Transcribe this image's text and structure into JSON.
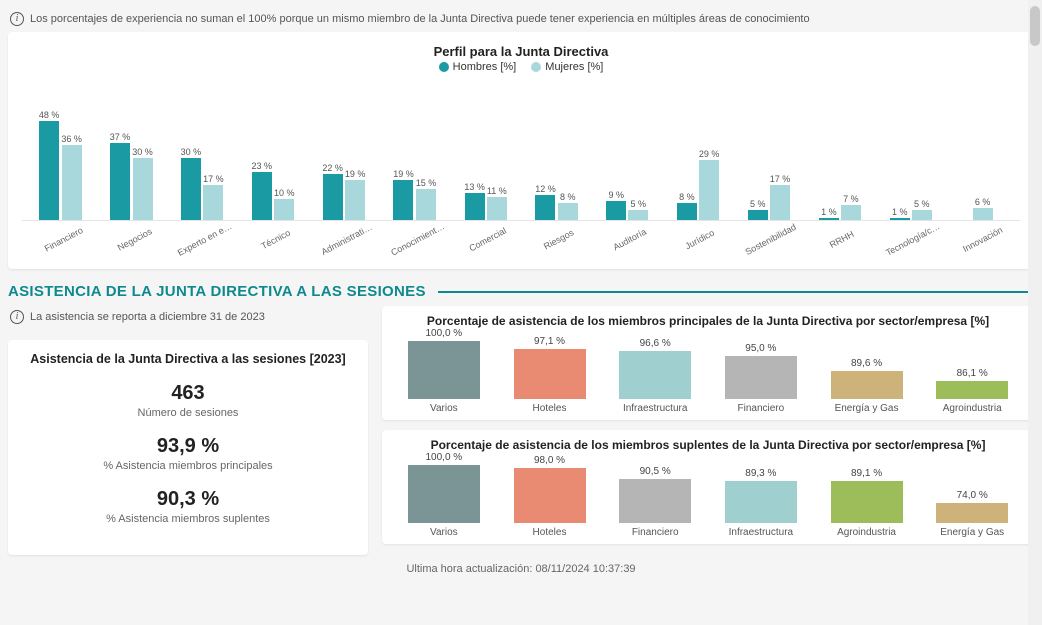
{
  "top_note": "Los porcentajes de experiencia no suman el 100% porque un mismo miembro de la Junta Directiva puede tener experiencia en múltiples áreas de conocimiento",
  "chart1": {
    "title": "Perfil para la Junta Directiva",
    "type": "grouped-bar",
    "ylim_max": 48,
    "legend": [
      {
        "label": "Hombres [%]",
        "color": "#1a9ba3"
      },
      {
        "label": "Mujeres [%]",
        "color": "#a9d8dc"
      }
    ],
    "categories": [
      "Financiero",
      "Negocios",
      "Experto en e…",
      "Técnico",
      "Administrati…",
      "Conocimient…",
      "Comercial",
      "Riesgos",
      "Auditoría",
      "Jurídico",
      "Sostenibilidad",
      "RRHH",
      "Tecnología/c…",
      "Innovación"
    ],
    "series": {
      "hombres": [
        48,
        37,
        30,
        23,
        22,
        19,
        13,
        12,
        9,
        8,
        5,
        1,
        1,
        null
      ],
      "mujeres": [
        36,
        30,
        17,
        10,
        19,
        15,
        11,
        8,
        5,
        29,
        17,
        7,
        5,
        6
      ]
    },
    "bar_colors": {
      "hombres": "#1a9ba3",
      "mujeres": "#a9d8dc"
    },
    "value_suffix": " %",
    "label_fontsize": 9,
    "background_color": "#ffffff"
  },
  "section_title": "ASISTENCIA DE LA JUNTA DIRECTIVA A LAS SESIONES",
  "section_color": "#0e8a8f",
  "att_note": "La asistencia se reporta a diciembre 31 de 2023",
  "stats": {
    "title": "Asistencia de la Junta Directiva a las sesiones [2023]",
    "items": [
      {
        "value": "463",
        "label": "Número de sesiones"
      },
      {
        "value": "93,9 %",
        "label": "% Asistencia miembros principales"
      },
      {
        "value": "90,3 %",
        "label": "% Asistencia miembros suplentes"
      }
    ]
  },
  "mini1": {
    "title": "Porcentaje de asistencia de los miembros principales de la Junta Directiva por sector/empresa [%]",
    "type": "bar",
    "ylim": [
      80,
      100
    ],
    "bars": [
      {
        "label": "Varios",
        "value": 100.0,
        "display": "100,0 %",
        "color": "#7b9496"
      },
      {
        "label": "Hoteles",
        "value": 97.1,
        "display": "97,1 %",
        "color": "#e88b72"
      },
      {
        "label": "Infraestructura",
        "value": 96.6,
        "display": "96,6 %",
        "color": "#9fd0cf"
      },
      {
        "label": "Financiero",
        "value": 95.0,
        "display": "95,0 %",
        "color": "#b5b5b5"
      },
      {
        "label": "Energía y Gas",
        "value": 89.6,
        "display": "89,6 %",
        "color": "#cdb37a"
      },
      {
        "label": "Agroindustria",
        "value": 86.1,
        "display": "86,1 %",
        "color": "#9cbd5a"
      }
    ]
  },
  "mini2": {
    "title": "Porcentaje de asistencia de los miembros suplentes de la Junta Directiva por sector/empresa [%]",
    "type": "bar",
    "ylim": [
      60,
      100
    ],
    "bars": [
      {
        "label": "Varios",
        "value": 100.0,
        "display": "100,0 %",
        "color": "#7b9496"
      },
      {
        "label": "Hoteles",
        "value": 98.0,
        "display": "98,0 %",
        "color": "#e88b72"
      },
      {
        "label": "Financiero",
        "value": 90.5,
        "display": "90,5 %",
        "color": "#b5b5b5"
      },
      {
        "label": "Infraestructura",
        "value": 89.3,
        "display": "89,3 %",
        "color": "#9fd0cf"
      },
      {
        "label": "Agroindustria",
        "value": 89.1,
        "display": "89,1 %",
        "color": "#9cbd5a"
      },
      {
        "label": "Energía y Gas",
        "value": 74.0,
        "display": "74,0 %",
        "color": "#cdb37a"
      }
    ]
  },
  "footer": "Ultima hora actualización: 08/11/2024 10:37:39"
}
